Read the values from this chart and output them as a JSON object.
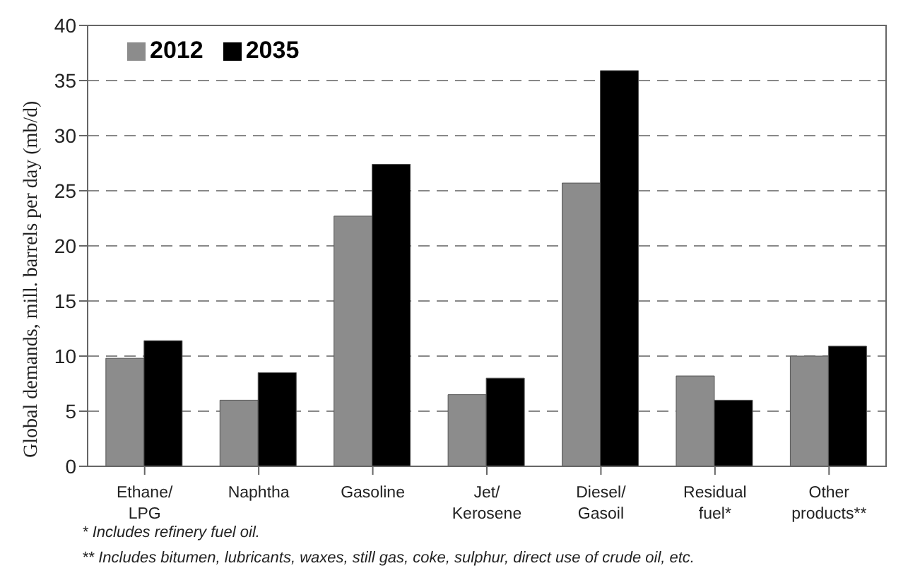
{
  "chart_data": {
    "type": "bar",
    "ylabel": "Global demands, mill. barrels per day (mb/d)",
    "categories": [
      "Ethane/\nLPG",
      "Naphtha",
      "Gasoline",
      "Jet/\nKerosene",
      "Diesel/\nGasoil",
      "Residual\nfuel*",
      "Other\nproducts**"
    ],
    "series": [
      {
        "name": "2012",
        "color": "#8c8c8c",
        "values": [
          9.8,
          6.0,
          22.7,
          6.5,
          25.7,
          8.2,
          10.0
        ]
      },
      {
        "name": "2035",
        "color": "#000000",
        "values": [
          11.4,
          8.5,
          27.4,
          8.0,
          35.9,
          6.0,
          10.9
        ]
      }
    ],
    "ylim": [
      0,
      40
    ],
    "yticks": [
      0,
      5,
      10,
      15,
      20,
      25,
      30,
      35,
      40
    ],
    "grid": "y",
    "legend": "top left",
    "annotations": [
      "*  Includes refinery fuel oil.",
      "**  Includes bitumen, lubricants, waxes, still gas, coke, sulphur, direct use of crude oil, etc."
    ]
  }
}
